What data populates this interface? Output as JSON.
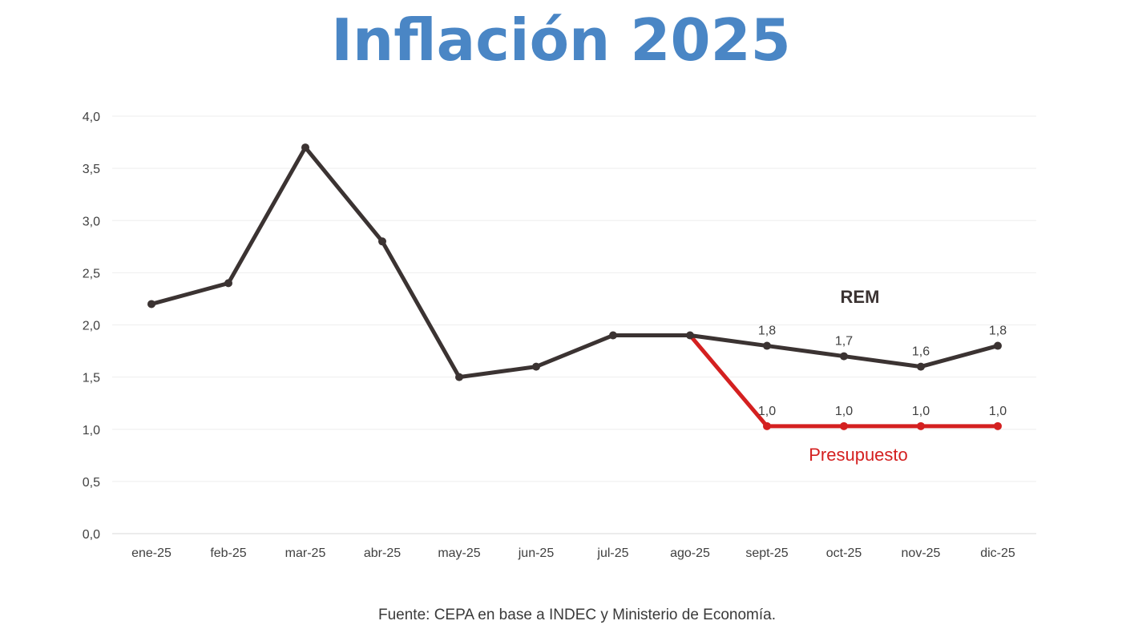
{
  "title": "Inflación 2025",
  "source": "Fuente: CEPA en base a INDEC y Ministerio de Economía.",
  "colors": {
    "title": "#4a86c5",
    "rem": "#3b3332",
    "presupuesto": "#d42020",
    "grid": "#eeeeee"
  },
  "chart_data": {
    "type": "line",
    "categories": [
      "ene-25",
      "feb-25",
      "mar-25",
      "abr-25",
      "may-25",
      "jun-25",
      "jul-25",
      "ago-25",
      "sept-25",
      "oct-25",
      "nov-25",
      "dic-25"
    ],
    "ylim": [
      0,
      4
    ],
    "yticks": [
      "0,0",
      "0,5",
      "1,0",
      "1,5",
      "2,0",
      "2,5",
      "3,0",
      "3,5",
      "4,0"
    ],
    "grid": true,
    "series": [
      {
        "name": "REM",
        "color": "#3b3332",
        "values": [
          2.2,
          2.4,
          3.7,
          2.8,
          1.5,
          1.6,
          1.9,
          1.9,
          1.8,
          1.7,
          1.6,
          1.8
        ],
        "labels": [
          null,
          null,
          null,
          null,
          null,
          null,
          null,
          null,
          "1,8",
          "1,7",
          "1,6",
          "1,8"
        ]
      },
      {
        "name": "Presupuesto",
        "color": "#d42020",
        "values": [
          null,
          null,
          null,
          null,
          null,
          null,
          null,
          1.9,
          1.03,
          1.03,
          1.03,
          1.03
        ],
        "labels": [
          null,
          null,
          null,
          null,
          null,
          null,
          null,
          null,
          "1,0",
          "1,0",
          "1,0",
          "1,0"
        ]
      }
    ]
  }
}
